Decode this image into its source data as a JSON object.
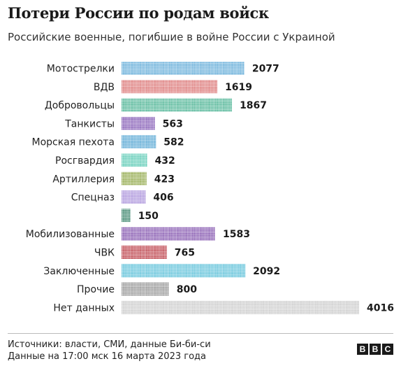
{
  "header": {
    "title": "Потери России по родам войск",
    "subtitle": "Российские военные, погибшие в войне России с Украиной"
  },
  "footer": {
    "source": "Источники: власти, СМИ, данные Би-би-си",
    "date": "Данные на 17:00 мск 16 марта 2023 года",
    "logo_letters": [
      "B",
      "B",
      "C"
    ]
  },
  "chart_data": {
    "type": "bar",
    "orientation": "horizontal",
    "style": "pictogram-dot-grid",
    "categories": [
      "Мотострелки",
      "ВДВ",
      "Добровольцы",
      "Танкисты",
      "Морская пехота",
      "Росгвардия",
      "Артиллерия",
      "Спецназ",
      "",
      "Мобилизованные",
      "ЧВК",
      "Заключенные",
      "Прочие",
      "Нет данных"
    ],
    "values": [
      2077,
      1619,
      1867,
      563,
      582,
      432,
      423,
      406,
      150,
      1583,
      765,
      2092,
      800,
      4016
    ],
    "colors": [
      "#5aa7d6",
      "#d86a6a",
      "#3fae8c",
      "#7b4fb0",
      "#4aa0d0",
      "#52c7b0",
      "#8aa33e",
      "#a48ad8",
      "#2e7d62",
      "#7a48a8",
      "#b8333d",
      "#52bcd6",
      "#8e8e8e",
      "#c8c8c8"
    ],
    "title": "Потери России по родам войск",
    "subtitle": "Российские военные, погибшие в войне России с Украиной",
    "xlabel": "",
    "ylabel": "",
    "grid": false
  }
}
